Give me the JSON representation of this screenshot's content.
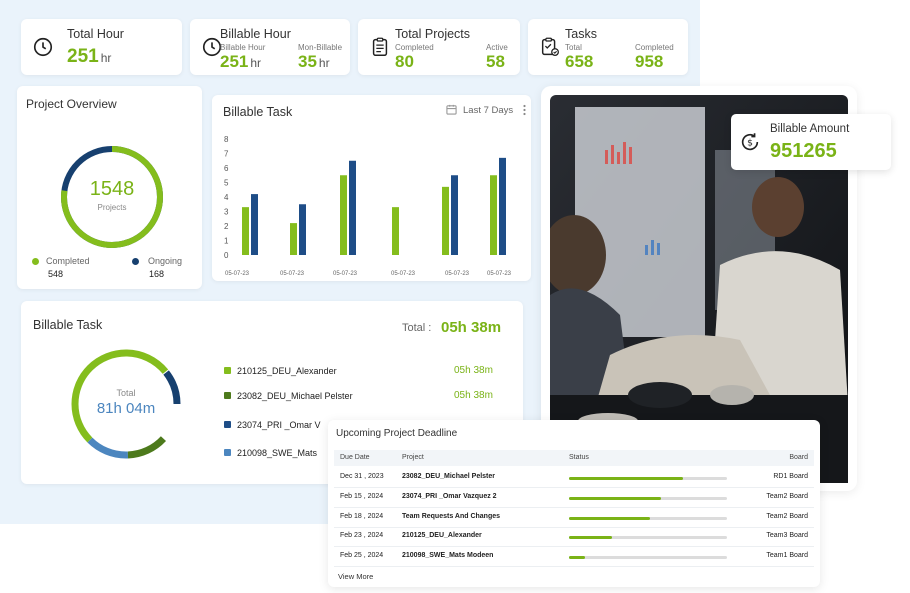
{
  "stats": {
    "total_hour": {
      "title": "Total Hour",
      "value": "251",
      "unit": "hr"
    },
    "billable_hour": {
      "title": "Billable Hour",
      "billable_label": "Billable Hour",
      "billable_value": "251",
      "billable_unit": "hr",
      "non_billable_label": "Mon-Billable",
      "non_billable_value": "35",
      "non_billable_unit": "hr"
    },
    "total_projects": {
      "title": "Total Projects",
      "completed_label": "Completed",
      "completed_value": "80",
      "active_label": "Active",
      "active_value": "58"
    },
    "tasks": {
      "title": "Tasks",
      "total_label": "Total",
      "total_value": "658",
      "completed_label": "Completed",
      "completed_value": "958"
    }
  },
  "project_overview": {
    "title": "Project Overview",
    "center_value": "1548",
    "center_label": "Projects",
    "completed_label": "Completed",
    "completed_value": "548",
    "ongoing_label": "Ongoing",
    "ongoing_value": "168",
    "completed_fraction": 0.77
  },
  "billable_task_chart": {
    "title": "Billable Task",
    "range_label": "Last 7 Days"
  },
  "chart_data": {
    "type": "bar",
    "categories": [
      "05-07-23",
      "05-07-23",
      "05-07-23",
      "05-07-23",
      "05-07-23",
      "05-07-23"
    ],
    "series": [
      {
        "values": [
          3.3,
          2.2,
          5.5,
          3.3,
          4.7,
          5.5
        ]
      },
      {
        "values": [
          4.2,
          3.5,
          6.5,
          0,
          5.5,
          6.7
        ]
      }
    ],
    "ylim": [
      0,
      8
    ],
    "yticks": [
      "0",
      "1",
      "2",
      "3",
      "4",
      "5",
      "6",
      "7",
      "8"
    ],
    "colors": [
      "#84bd1d",
      "#1e4d87"
    ]
  },
  "billable_task": {
    "title": "Billable Task",
    "total_label": "Total",
    "total_value": "05h 38m",
    "donut_label": "Total",
    "donut_value": "81h 04m",
    "items": [
      {
        "name": "210125_DEU_Alexander",
        "time": "05h 38m",
        "color": "#84bd1d"
      },
      {
        "name": "23082_DEU_Michael Pelster",
        "time": "05h 38m",
        "color": "#4d7a1c"
      },
      {
        "name": "23074_PRI _Omar V",
        "time": "",
        "color": "#1e4d87"
      },
      {
        "name": "210098_SWE_Mats",
        "time": "",
        "color": "#4c86bf"
      }
    ]
  },
  "billable_amount": {
    "label": "Billable Amount",
    "value": "951265"
  },
  "deadlines": {
    "title": "Upcoming Project Deadline",
    "columns": [
      "Due Date",
      "Project",
      "Status",
      "Board"
    ],
    "rows": [
      {
        "date": "Dec 31 , 2023",
        "project": "23082_DEU_Michael Pelster",
        "progress": 0.72,
        "board": "RD1 Board"
      },
      {
        "date": "Feb 15 , 2024",
        "project": "23074_PRI _Omar Vazquez 2",
        "progress": 0.58,
        "board": "Team2 Board"
      },
      {
        "date": "Feb 18 , 2024",
        "project": "Team Requests And Changes",
        "progress": 0.51,
        "board": "Team2 Board"
      },
      {
        "date": "Feb 23 , 2024",
        "project": "210125_DEU_Alexander",
        "progress": 0.27,
        "board": "Team3 Board"
      },
      {
        "date": "Feb 25 , 2024",
        "project": "210098_SWE_Mats Modeen",
        "progress": 0.1,
        "board": "Team1 Board"
      }
    ],
    "view_more": "View More"
  },
  "icons": {
    "clock": "clock-icon",
    "clipboard": "clipboard-icon",
    "tasks": "task-check-icon",
    "calendar": "calendar-icon",
    "more": "more-vertical-icon",
    "money": "money-cycle-icon"
  },
  "colors": {
    "accent_green": "#7ab317",
    "navy": "#1e4d87",
    "panel_bg": "#eaf3fb"
  }
}
